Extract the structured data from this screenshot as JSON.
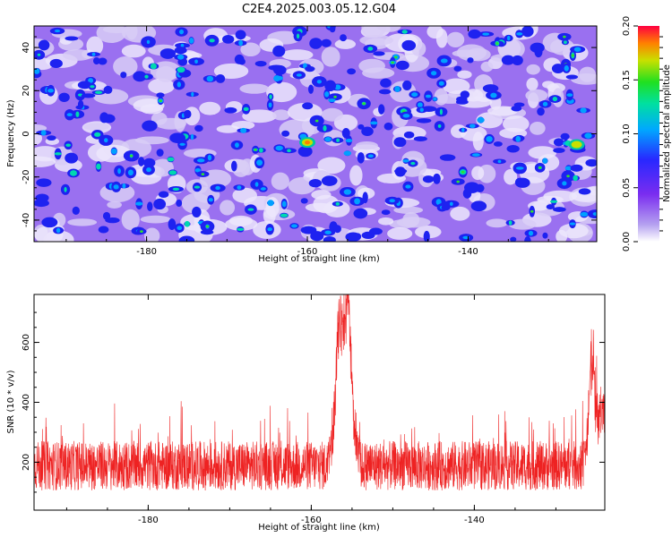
{
  "title": "C2E4.2025.003.05.12.G04",
  "chart_data": [
    {
      "type": "heatmap",
      "xlabel": "Height of straight line (km)",
      "ylabel": "Frequency (Hz)",
      "xlim": [
        -194,
        -124
      ],
      "ylim": [
        -50,
        50
      ],
      "x_ticks": [
        -180,
        -160,
        -140
      ],
      "y_ticks": [
        -40,
        -20,
        0,
        20,
        40
      ],
      "colorbar": {
        "label": "Normalized spectral amplitude",
        "range": [
          0.0,
          0.2
        ],
        "ticks": [
          "0.00",
          "0.05",
          "0.10",
          "0.15",
          "0.20"
        ]
      },
      "peaks": [
        {
          "x": -160.0,
          "y": -4,
          "value": 0.19
        },
        {
          "x": -126.5,
          "y": -5,
          "value": 0.18
        }
      ],
      "grid": false,
      "color": "#7a2df0"
    },
    {
      "type": "line",
      "xlabel": "Height of straight line (km)",
      "ylabel": "SNR (10 * v/v)",
      "xlim": [
        -194,
        -124
      ],
      "ylim": [
        40,
        760
      ],
      "x_ticks": [
        -180,
        -160,
        -140
      ],
      "y_ticks": [
        200,
        400,
        600
      ],
      "series": [
        {
          "baseline": 180,
          "noise": 150,
          "peaks": [
            {
              "x": -155.5,
              "value": 760
            },
            {
              "x": -156.5,
              "value": 680
            },
            {
              "x": -125.5,
              "value": 605
            },
            {
              "x": -124.2,
              "value": 430
            }
          ],
          "color": "#ee2222"
        }
      ],
      "grid": false
    }
  ]
}
